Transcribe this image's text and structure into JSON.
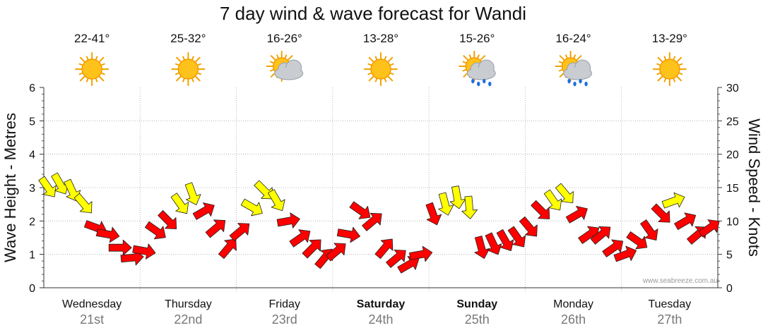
{
  "chart_data": {
    "type": "line",
    "title": "7 day wind & wave forecast for Wandi",
    "ylabel_left": "Wave Height - Metres",
    "ylabel_right": "Wind Speed - Knots",
    "ylim_left": [
      0,
      6
    ],
    "ylim_right": [
      0,
      30
    ],
    "yticks_left": [
      "0",
      "1",
      "2",
      "3",
      "4",
      "5",
      "6"
    ],
    "yticks_right": [
      "0",
      "5",
      "10",
      "15",
      "20",
      "25",
      "30"
    ],
    "grid": true,
    "credit": "www.seabreeze.com.au",
    "days": [
      {
        "day": "Wednesday",
        "date": "21st",
        "temp": "22-41°",
        "icon": "sun-icon",
        "weekend": false
      },
      {
        "day": "Thursday",
        "date": "22nd",
        "temp": "25-32°",
        "icon": "sun-icon",
        "weekend": false
      },
      {
        "day": "Friday",
        "date": "23rd",
        "temp": "16-26°",
        "icon": "sun-cloud-icon",
        "weekend": false
      },
      {
        "day": "Saturday",
        "date": "24th",
        "temp": "13-28°",
        "icon": "sun-icon",
        "weekend": true
      },
      {
        "day": "Sunday",
        "date": "25th",
        "temp": "15-26°",
        "icon": "sun-cloud-rain-icon",
        "weekend": true
      },
      {
        "day": "Monday",
        "date": "26th",
        "temp": "16-24°",
        "icon": "sun-cloud-rain-icon",
        "weekend": false
      },
      {
        "day": "Tuesday",
        "date": "27th",
        "temp": "13-29°",
        "icon": "sun-icon",
        "weekend": false
      }
    ],
    "wind_series": {
      "name": "",
      "unit": "knots",
      "hours": [
        0,
        3,
        6,
        9,
        12,
        15,
        18,
        21,
        24,
        27,
        30,
        33,
        36,
        39,
        42,
        45,
        48,
        51,
        54,
        57,
        60,
        63,
        66,
        69,
        72,
        75,
        78,
        81,
        84,
        87,
        90,
        93,
        96,
        99,
        102,
        105,
        108,
        111,
        114,
        117,
        120,
        123,
        126,
        129,
        132,
        135,
        138,
        141,
        144,
        147,
        150,
        153,
        156,
        159,
        162,
        165
      ],
      "speed": [
        15,
        15.5,
        14.5,
        12.5,
        9,
        8,
        6,
        4.5,
        5.5,
        8.5,
        10,
        12.5,
        14,
        11.5,
        9,
        6,
        8.5,
        12,
        14.5,
        13,
        10,
        7.5,
        6,
        4.5,
        5.5,
        8,
        11.5,
        10,
        6,
        4.5,
        3.5,
        5,
        11,
        12.5,
        13.5,
        12,
        6,
        6.5,
        7,
        7.5,
        9,
        11.5,
        13,
        14,
        11,
        8,
        8,
        6,
        5,
        7,
        8.5,
        11,
        13,
        10,
        8,
        9
      ],
      "direction_deg": [
        235,
        240,
        245,
        230,
        200,
        190,
        180,
        175,
        190,
        215,
        225,
        235,
        250,
        150,
        140,
        130,
        140,
        210,
        225,
        240,
        170,
        145,
        135,
        130,
        140,
        190,
        215,
        140,
        130,
        140,
        150,
        170,
        250,
        255,
        260,
        265,
        255,
        245,
        240,
        235,
        230,
        225,
        235,
        230,
        150,
        145,
        140,
        145,
        160,
        215,
        235,
        225,
        160,
        150,
        140,
        145
      ]
    }
  }
}
